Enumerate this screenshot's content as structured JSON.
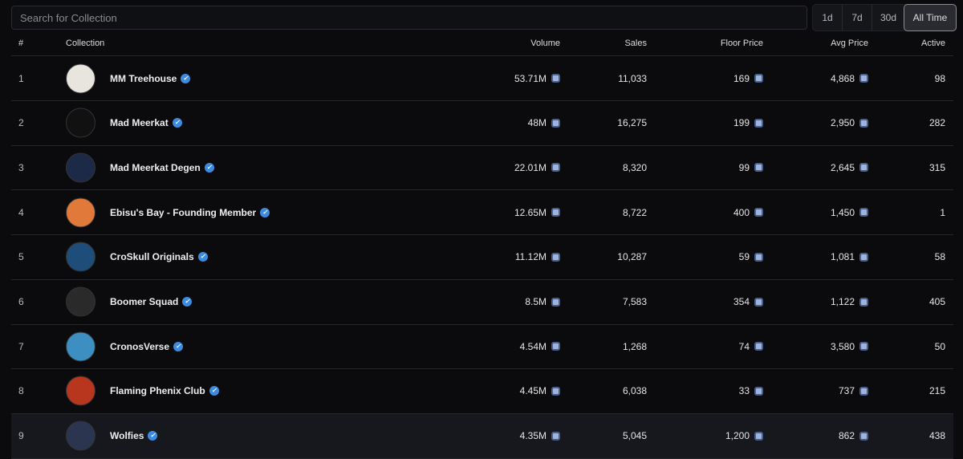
{
  "search": {
    "placeholder": "Search for Collection"
  },
  "time_tabs": [
    {
      "label": "1d"
    },
    {
      "label": "7d"
    },
    {
      "label": "30d"
    },
    {
      "label": "All Time",
      "active": true
    }
  ],
  "columns": {
    "rank": "#",
    "collection": "Collection",
    "volume": "Volume",
    "sales": "Sales",
    "floor": "Floor Price",
    "avg": "Avg Price",
    "active": "Active"
  },
  "currency_icon": "cro-coin-icon",
  "colors": {
    "verified": "#3d8be0",
    "background": "#0b0b0e"
  },
  "rows": [
    {
      "rank": "1",
      "name": "MM Treehouse",
      "volume": "53.71M",
      "sales": "11,033",
      "floor": "169",
      "avg": "4,868",
      "active": "98",
      "avatar": "#e8e4de"
    },
    {
      "rank": "2",
      "name": "Mad Meerkat",
      "volume": "48M",
      "sales": "16,275",
      "floor": "199",
      "avg": "2,950",
      "active": "282",
      "avatar": "#111111"
    },
    {
      "rank": "3",
      "name": "Mad Meerkat Degen",
      "volume": "22.01M",
      "sales": "8,320",
      "floor": "99",
      "avg": "2,645",
      "active": "315",
      "avatar": "#1c2a48"
    },
    {
      "rank": "4",
      "name": "Ebisu's Bay - Founding Member",
      "volume": "12.65M",
      "sales": "8,722",
      "floor": "400",
      "avg": "1,450",
      "active": "1",
      "avatar": "#e0793a"
    },
    {
      "rank": "5",
      "name": "CroSkull Originals",
      "volume": "11.12M",
      "sales": "10,287",
      "floor": "59",
      "avg": "1,081",
      "active": "58",
      "avatar": "#1f4d7a"
    },
    {
      "rank": "6",
      "name": "Boomer Squad",
      "volume": "8.5M",
      "sales": "7,583",
      "floor": "354",
      "avg": "1,122",
      "active": "405",
      "avatar": "#2a2a2a"
    },
    {
      "rank": "7",
      "name": "CronosVerse",
      "volume": "4.54M",
      "sales": "1,268",
      "floor": "74",
      "avg": "3,580",
      "active": "50",
      "avatar": "#3c8fc0"
    },
    {
      "rank": "8",
      "name": "Flaming Phenix Club",
      "volume": "4.45M",
      "sales": "6,038",
      "floor": "33",
      "avg": "737",
      "active": "215",
      "avatar": "#b8361e"
    },
    {
      "rank": "9",
      "name": "Wolfies",
      "volume": "4.35M",
      "sales": "5,045",
      "floor": "1,200",
      "avg": "862",
      "active": "438",
      "avatar": "#2b3550",
      "highlighted": true
    }
  ]
}
